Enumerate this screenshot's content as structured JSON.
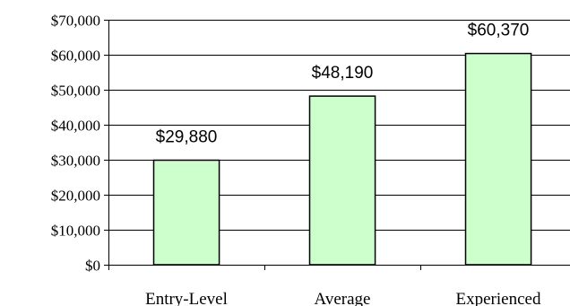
{
  "chart_data": {
    "type": "bar",
    "categories": [
      "Entry-Level",
      "Average",
      "Experienced"
    ],
    "values": [
      29880,
      48190,
      60370
    ],
    "data_labels": [
      "$29,880",
      "$48,190",
      "$60,370"
    ],
    "ylim": [
      0,
      70000
    ],
    "yticks": [
      0,
      10000,
      20000,
      30000,
      40000,
      50000,
      60000,
      70000
    ],
    "ytick_labels": [
      "$0",
      "$10,000",
      "$20,000",
      "$30,000",
      "$40,000",
      "$50,000",
      "$60,000",
      "$70,000"
    ],
    "grid": true,
    "legend": "none",
    "bar_color": "#ccffcc",
    "bar_edge_color": "#000000",
    "title": "",
    "xlabel": "",
    "ylabel": ""
  }
}
